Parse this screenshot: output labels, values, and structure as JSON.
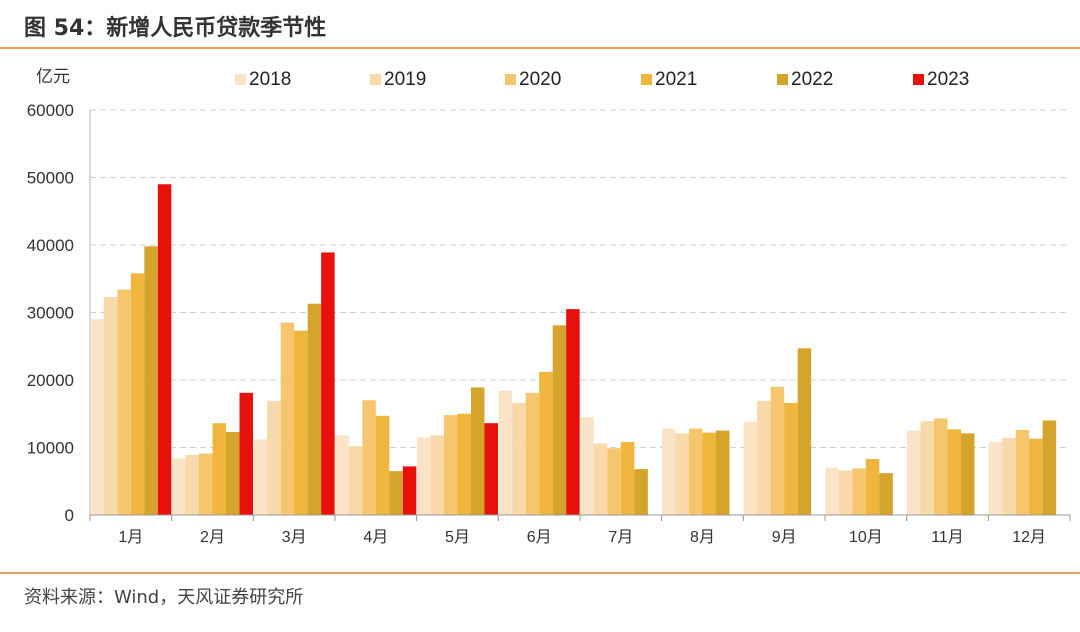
{
  "header": {
    "title": "图 54：新增人民币贷款季节性"
  },
  "footer": {
    "source": "资料来源：Wind，天风证券研究所"
  },
  "chart_data": {
    "type": "bar",
    "unit_label": "亿元",
    "categories": [
      "1月",
      "2月",
      "3月",
      "4月",
      "5月",
      "6月",
      "7月",
      "8月",
      "9月",
      "10月",
      "11月",
      "12月"
    ],
    "ylim": [
      0,
      60000
    ],
    "yticks": [
      0,
      10000,
      20000,
      30000,
      40000,
      50000,
      60000
    ],
    "legend_position": "top",
    "series": [
      {
        "name": "2018",
        "color": "#fbe3c7",
        "values": [
          29000,
          8400,
          11200,
          11800,
          11500,
          18400,
          14500,
          12800,
          13800,
          7000,
          12500,
          10800
        ]
      },
      {
        "name": "2019",
        "color": "#f9d9a9",
        "values": [
          32300,
          8900,
          16900,
          10200,
          11800,
          16600,
          10600,
          12100,
          16900,
          6600,
          13900,
          11400
        ]
      },
      {
        "name": "2020",
        "color": "#f6c66e",
        "values": [
          33400,
          9100,
          28500,
          17000,
          14800,
          18100,
          9900,
          12800,
          19000,
          6900,
          14300,
          12600
        ]
      },
      {
        "name": "2021",
        "color": "#efb53c",
        "values": [
          35800,
          13600,
          27300,
          14700,
          15000,
          21200,
          10800,
          12200,
          16600,
          8300,
          12700,
          11300
        ]
      },
      {
        "name": "2022",
        "color": "#d4a42c",
        "values": [
          39800,
          12300,
          31300,
          6500,
          18900,
          28100,
          6800,
          12500,
          24700,
          6200,
          12100,
          14000
        ]
      },
      {
        "name": "2023",
        "color": "#e8100b",
        "values": [
          49000,
          18100,
          38900,
          7200,
          13600,
          30500,
          null,
          null,
          null,
          null,
          null,
          null
        ]
      }
    ]
  }
}
